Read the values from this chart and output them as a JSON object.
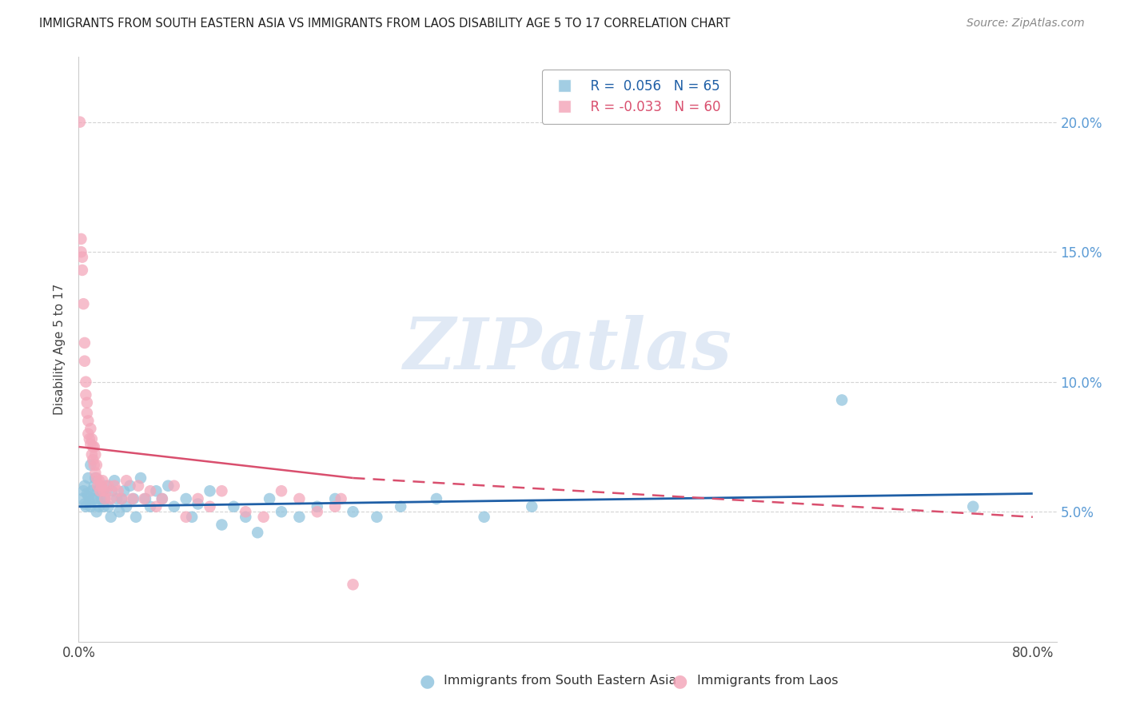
{
  "title": "IMMIGRANTS FROM SOUTH EASTERN ASIA VS IMMIGRANTS FROM LAOS DISABILITY AGE 5 TO 17 CORRELATION CHART",
  "source": "Source: ZipAtlas.com",
  "ylabel": "Disability Age 5 to 17",
  "xlim": [
    0.0,
    0.82
  ],
  "ylim": [
    0.0,
    0.225
  ],
  "legend_blue_R": "R =  0.056",
  "legend_blue_N": "N = 65",
  "legend_pink_R": "R = -0.033",
  "legend_pink_N": "N = 60",
  "legend_blue_label": "Immigrants from South Eastern Asia",
  "legend_pink_label": "Immigrants from Laos",
  "watermark": "ZIPatlas",
  "blue_color": "#92c5de",
  "pink_color": "#f4a8bb",
  "trend_blue_color": "#1f5fa6",
  "trend_pink_color": "#d94f6e",
  "blue_scatter_x": [
    0.003,
    0.004,
    0.005,
    0.005,
    0.006,
    0.007,
    0.008,
    0.008,
    0.009,
    0.01,
    0.01,
    0.011,
    0.012,
    0.013,
    0.014,
    0.015,
    0.016,
    0.016,
    0.017,
    0.018,
    0.019,
    0.02,
    0.021,
    0.022,
    0.023,
    0.025,
    0.027,
    0.028,
    0.03,
    0.032,
    0.034,
    0.036,
    0.038,
    0.04,
    0.043,
    0.046,
    0.048,
    0.052,
    0.056,
    0.06,
    0.065,
    0.07,
    0.075,
    0.08,
    0.09,
    0.095,
    0.1,
    0.11,
    0.12,
    0.13,
    0.14,
    0.15,
    0.16,
    0.17,
    0.185,
    0.2,
    0.215,
    0.23,
    0.25,
    0.27,
    0.3,
    0.34,
    0.38,
    0.64,
    0.75
  ],
  "blue_scatter_y": [
    0.055,
    0.058,
    0.053,
    0.06,
    0.052,
    0.057,
    0.063,
    0.056,
    0.054,
    0.068,
    0.052,
    0.058,
    0.055,
    0.06,
    0.063,
    0.05,
    0.055,
    0.058,
    0.052,
    0.06,
    0.055,
    0.058,
    0.052,
    0.055,
    0.06,
    0.052,
    0.048,
    0.058,
    0.062,
    0.055,
    0.05,
    0.055,
    0.058,
    0.052,
    0.06,
    0.055,
    0.048,
    0.063,
    0.055,
    0.052,
    0.058,
    0.055,
    0.06,
    0.052,
    0.055,
    0.048,
    0.053,
    0.058,
    0.045,
    0.052,
    0.048,
    0.042,
    0.055,
    0.05,
    0.048,
    0.052,
    0.055,
    0.05,
    0.048,
    0.052,
    0.055,
    0.048,
    0.052,
    0.093,
    0.052
  ],
  "pink_scatter_x": [
    0.001,
    0.002,
    0.002,
    0.003,
    0.003,
    0.004,
    0.005,
    0.005,
    0.006,
    0.006,
    0.007,
    0.007,
    0.008,
    0.008,
    0.009,
    0.01,
    0.01,
    0.011,
    0.011,
    0.012,
    0.012,
    0.013,
    0.013,
    0.014,
    0.014,
    0.015,
    0.015,
    0.016,
    0.017,
    0.018,
    0.019,
    0.02,
    0.021,
    0.022,
    0.023,
    0.025,
    0.027,
    0.03,
    0.033,
    0.036,
    0.04,
    0.045,
    0.05,
    0.055,
    0.06,
    0.065,
    0.07,
    0.08,
    0.09,
    0.1,
    0.11,
    0.12,
    0.14,
    0.155,
    0.17,
    0.185,
    0.2,
    0.215,
    0.22,
    0.23
  ],
  "pink_scatter_y": [
    0.2,
    0.155,
    0.15,
    0.148,
    0.143,
    0.13,
    0.115,
    0.108,
    0.1,
    0.095,
    0.092,
    0.088,
    0.085,
    0.08,
    0.078,
    0.082,
    0.076,
    0.078,
    0.072,
    0.075,
    0.07,
    0.068,
    0.075,
    0.072,
    0.065,
    0.068,
    0.063,
    0.06,
    0.062,
    0.058,
    0.06,
    0.062,
    0.058,
    0.055,
    0.058,
    0.06,
    0.055,
    0.06,
    0.058,
    0.055,
    0.062,
    0.055,
    0.06,
    0.055,
    0.058,
    0.052,
    0.055,
    0.06,
    0.048,
    0.055,
    0.052,
    0.058,
    0.05,
    0.048,
    0.058,
    0.055,
    0.05,
    0.052,
    0.055,
    0.022
  ]
}
